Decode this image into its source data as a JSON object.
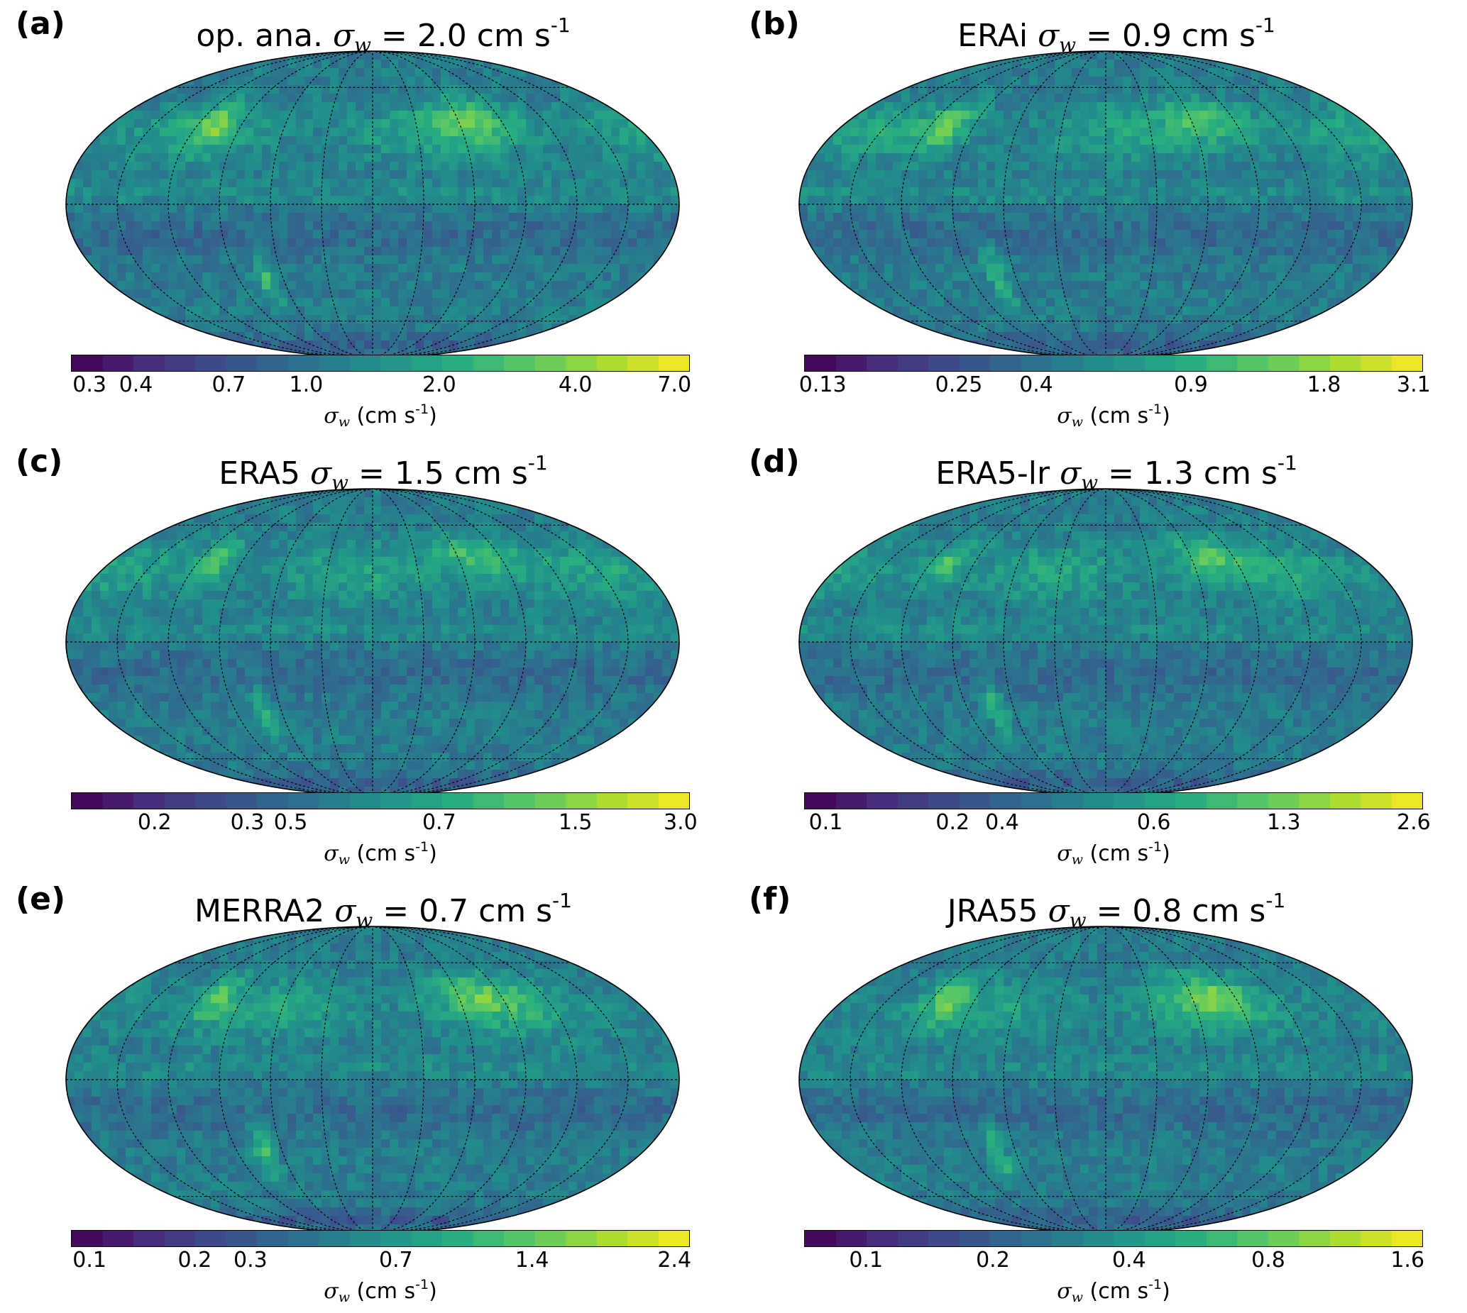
{
  "colors": {
    "viridis": [
      "#440154",
      "#472d7b",
      "#3b528b",
      "#2c728e",
      "#21918c",
      "#28ae80",
      "#5ec962",
      "#addc30",
      "#fde725"
    ]
  },
  "panels": [
    {
      "letter": "(a)",
      "title_prefix": "op. ana.",
      "sigma_symbol": "σ",
      "sigma_sub": "w",
      "title_value": "= 2.0 cm s",
      "title_sup": "-1",
      "colorbar_ticks": [
        "0.3",
        "0.4",
        "0.7",
        "1.0",
        "2.0",
        "4.0",
        "7.0"
      ],
      "colorbar_label_unit": "(cm s",
      "colorbar_label_sup": "-1",
      "colorbar_label_close": ")"
    },
    {
      "letter": "(b)",
      "title_prefix": "ERAi",
      "sigma_symbol": "σ",
      "sigma_sub": "w",
      "title_value": "= 0.9 cm s",
      "title_sup": "-1",
      "colorbar_ticks": [
        "0.13",
        "0.25",
        "0.4",
        "0.9",
        "1.8",
        "3.1"
      ],
      "colorbar_label_unit": "(cm s",
      "colorbar_label_sup": "-1",
      "colorbar_label_close": ")"
    },
    {
      "letter": "(c)",
      "title_prefix": "ERA5",
      "sigma_symbol": "σ",
      "sigma_sub": "w",
      "title_value": "= 1.5 cm s",
      "title_sup": "-1",
      "colorbar_ticks": [
        "0.2",
        "0.3",
        "0.5",
        "0.7",
        "1.5",
        "3.0"
      ],
      "colorbar_label_unit": "(cm s",
      "colorbar_label_sup": "-1",
      "colorbar_label_close": ")"
    },
    {
      "letter": "(d)",
      "title_prefix": "ERA5-lr",
      "sigma_symbol": "σ",
      "sigma_sub": "w",
      "title_value": "= 1.3 cm s",
      "title_sup": "-1",
      "colorbar_ticks": [
        "0.1",
        "0.2",
        "0.4",
        "0.6",
        "1.3",
        "2.6"
      ],
      "colorbar_label_unit": "(cm s",
      "colorbar_label_sup": "-1",
      "colorbar_label_close": ")"
    },
    {
      "letter": "(e)",
      "title_prefix": "MERRA2",
      "sigma_symbol": "σ",
      "sigma_sub": "w",
      "title_value": "= 0.7 cm s",
      "title_sup": "-1",
      "colorbar_ticks": [
        "0.1",
        "0.2",
        "0.3",
        "0.7",
        "1.4",
        "2.4"
      ],
      "colorbar_label_unit": "(cm s",
      "colorbar_label_sup": "-1",
      "colorbar_label_close": ")"
    },
    {
      "letter": "(f)",
      "title_prefix": "JRA55",
      "sigma_symbol": "σ",
      "sigma_sub": "w",
      "title_value": "= 0.8 cm s",
      "title_sup": "-1",
      "colorbar_ticks": [
        "0.1",
        "0.2",
        "0.4",
        "0.8",
        "1.6"
      ],
      "colorbar_label_unit": "(cm s",
      "colorbar_label_sup": "-1",
      "colorbar_label_close": ")"
    }
  ]
}
